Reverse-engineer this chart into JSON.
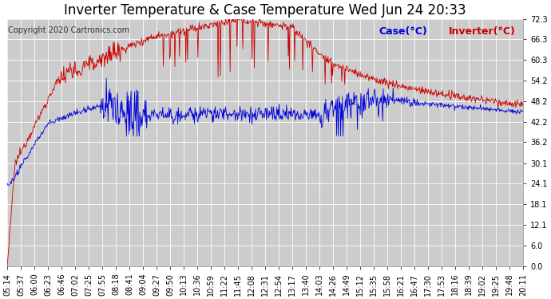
{
  "title": "Inverter Temperature & Case Temperature Wed Jun 24 20:33",
  "copyright": "Copyright 2020 Cartronics.com",
  "legend_case": "Case(°C)",
  "legend_inverter": "Inverter(°C)",
  "yticks": [
    0.0,
    6.0,
    12.1,
    18.1,
    24.1,
    30.1,
    36.2,
    42.2,
    48.2,
    54.2,
    60.3,
    66.3,
    72.3
  ],
  "ylim": [
    0.0,
    72.3
  ],
  "background_color": "#ffffff",
  "plot_bg_color": "#cccccc",
  "grid_color": "#ffffff",
  "title_color": "#000000",
  "case_color": "#0000dd",
  "inverter_color": "#cc0000",
  "total_minutes": 897,
  "xtick_labels": [
    "05:14",
    "05:37",
    "06:00",
    "06:23",
    "06:46",
    "07:02",
    "07:25",
    "07:55",
    "08:18",
    "08:41",
    "09:04",
    "09:27",
    "09:50",
    "10:13",
    "10:36",
    "10:59",
    "11:22",
    "11:45",
    "12:08",
    "12:31",
    "12:54",
    "13:17",
    "13:40",
    "14:03",
    "14:26",
    "14:49",
    "15:12",
    "15:35",
    "15:58",
    "16:21",
    "16:47",
    "17:30",
    "17:53",
    "18:16",
    "18:39",
    "19:02",
    "19:25",
    "19:48",
    "20:11"
  ],
  "title_fontsize": 12,
  "copyright_fontsize": 7,
  "tick_fontsize": 7,
  "legend_fontsize": 9
}
